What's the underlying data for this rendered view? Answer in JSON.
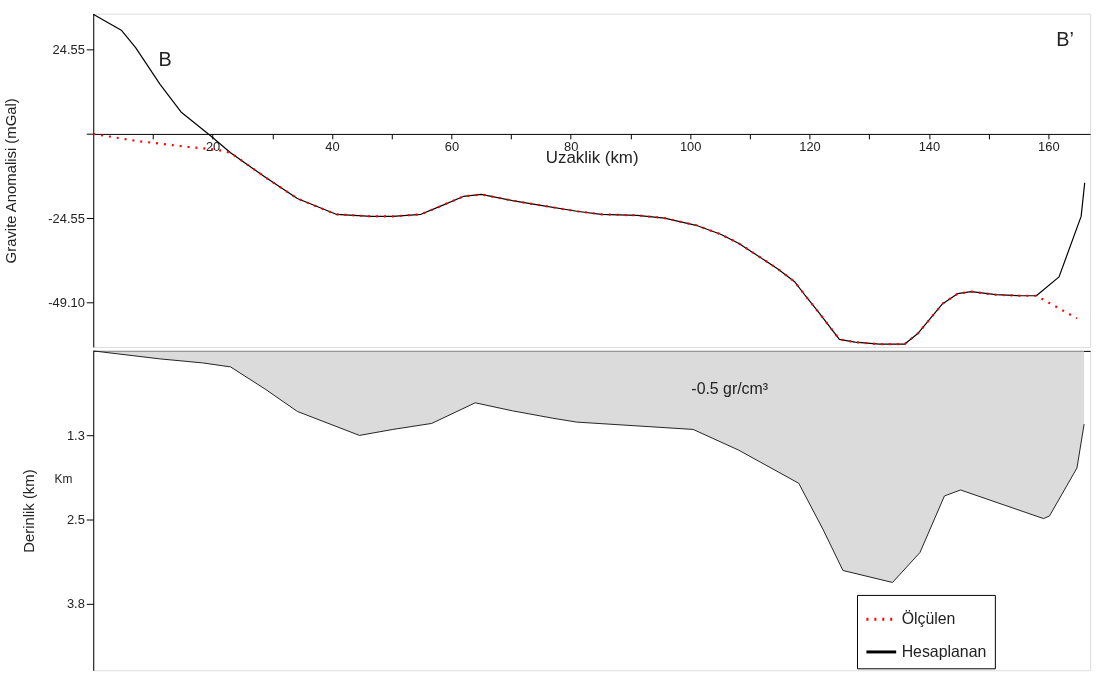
{
  "chart_data": [
    {
      "type": "line",
      "ylabel": "Gravite Anomalisi (mGal)",
      "xlabel": "Uzaklik (km)",
      "xlim": [
        0,
        167
      ],
      "ylim": [
        -62,
        35
      ],
      "xticks": [
        {
          "value": 10,
          "label": null
        },
        20,
        {
          "value": 30,
          "label": null
        },
        40,
        {
          "value": 50,
          "label": null
        },
        60,
        {
          "value": 70,
          "label": null
        },
        80,
        {
          "value": 90,
          "label": null
        },
        100,
        {
          "value": 110,
          "label": null
        },
        120,
        {
          "value": 130,
          "label": null
        },
        140,
        {
          "value": 150,
          "label": null
        },
        160
      ],
      "yticks": [
        24.55,
        {
          "value": 0,
          "label": null
        },
        -24.55,
        {
          "value": -49.1,
          "label": "-49.10"
        }
      ],
      "legend": "bottom right",
      "marker": "none",
      "annotations": [
        "B",
        "B’"
      ],
      "series": [
        {
          "name": "Ölçülen",
          "color": "#ff0000",
          "line_style": "dotted",
          "x": [
            0,
            7.1,
            15.9,
            20.7,
            23.0,
            28.9,
            34.2,
            40.7,
            46.6,
            50.2,
            54.9,
            58.5,
            62.0,
            65.0,
            70.2,
            75.0,
            81.0,
            85.1,
            91.1,
            95.7,
            101.0,
            105.1,
            108.1,
            114.7,
            117.5,
            119.3,
            121.7,
            125.0,
            127.6,
            131.7,
            135.9,
            138.2,
            142.3,
            144.8,
            147.1,
            151.2,
            155.4,
            158.0,
            161.0,
            164.8
          ],
          "values": [
            0,
            -2.0,
            -3.8,
            -4.6,
            -5.5,
            -12.7,
            -18.8,
            -23.4,
            -24.0,
            -24.0,
            -23.4,
            -20.8,
            -18.2,
            -17.6,
            -19.4,
            -20.8,
            -22.5,
            -23.4,
            -23.7,
            -24.5,
            -26.6,
            -29.2,
            -31.8,
            -39.3,
            -43.0,
            -47.1,
            -52.3,
            -59.8,
            -60.6,
            -61.2,
            -61.2,
            -58.0,
            -49.4,
            -46.5,
            -45.9,
            -46.8,
            -47.1,
            -47.1,
            -50.0,
            -53.7
          ]
        },
        {
          "name": "Hesaplanan",
          "color": "#000000",
          "line_style": "solid",
          "x": [
            0,
            4.7,
            7.1,
            11.2,
            14.7,
            19.7,
            23.0,
            28.9,
            34.2,
            40.7,
            46.6,
            50.2,
            54.9,
            58.5,
            62.0,
            65.0,
            70.2,
            75.0,
            81.0,
            85.1,
            91.1,
            95.7,
            101.0,
            105.1,
            108.1,
            114.7,
            117.5,
            119.3,
            121.7,
            125.0,
            127.6,
            131.7,
            135.9,
            138.2,
            142.3,
            144.8,
            147.1,
            151.2,
            155.4,
            158.0,
            161.8,
            165.5,
            166.1
          ],
          "values": [
            34.8,
            30.2,
            25.1,
            14.4,
            6.4,
            -0.6,
            -5.5,
            -12.7,
            -18.8,
            -23.4,
            -24.0,
            -24.0,
            -23.4,
            -20.8,
            -18.2,
            -17.6,
            -19.4,
            -20.8,
            -22.5,
            -23.4,
            -23.7,
            -24.5,
            -26.6,
            -29.2,
            -31.8,
            -39.3,
            -43.0,
            -47.1,
            -52.3,
            -59.8,
            -60.6,
            -61.2,
            -61.2,
            -58.0,
            -49.4,
            -46.5,
            -45.9,
            -46.8,
            -47.1,
            -47.1,
            -41.6,
            -24.0,
            -14.2
          ]
        }
      ]
    },
    {
      "type": "area",
      "ylabel": "Derinlik (km)",
      "xlim": [
        0,
        167
      ],
      "ylim": [
        4.8,
        0
      ],
      "tick_labels": "y",
      "yticks": [
        {
          "value": 1.27,
          "label": "1.3"
        },
        {
          "value": 2.53,
          "label": "2.5"
        },
        3.8
      ],
      "annotations": [
        "Km",
        "-0.5  gr/cm³"
      ],
      "series": [
        {
          "color": "#cccccc",
          "x": [
            0,
            11.2,
            18.3,
            23.0,
            28.9,
            34.2,
            44.6,
            50.2,
            56.7,
            64.0,
            70.2,
            76.9,
            81.0,
            100.5,
            108.1,
            118.2,
            122.3,
            125.6,
            133.9,
            138.5,
            142.6,
            145.3,
            159.2,
            160.2,
            164.8,
            166.0
          ],
          "values": [
            0,
            0.12,
            0.18,
            0.24,
            0.58,
            0.91,
            1.27,
            1.18,
            1.09,
            0.78,
            0.9,
            1.01,
            1.07,
            1.18,
            1.49,
            1.99,
            2.69,
            3.3,
            3.48,
            3.03,
            2.18,
            2.09,
            2.52,
            2.48,
            1.76,
            1.1
          ]
        }
      ]
    }
  ]
}
